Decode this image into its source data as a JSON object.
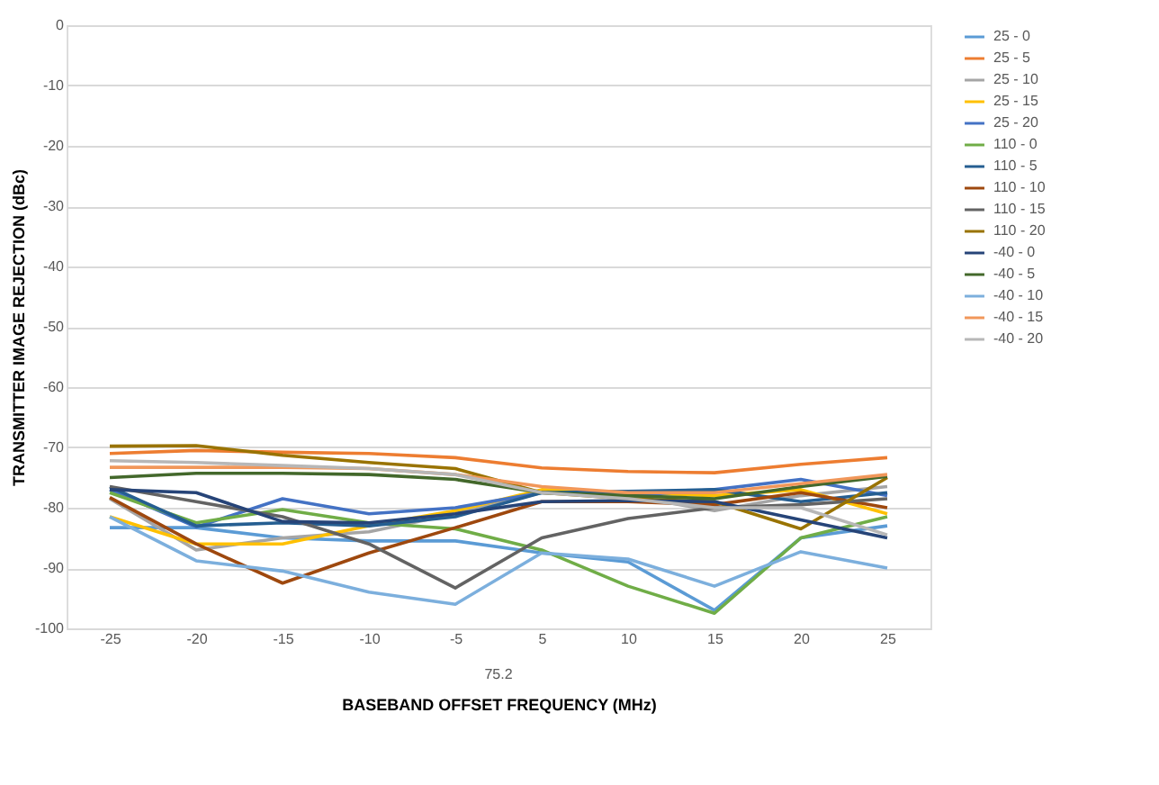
{
  "chart_data": {
    "type": "line",
    "xlabel": "BASEBAND OFFSET FREQUENCY (MHz)",
    "ylabel": "TRANSMITTER IMAGE REJECTION (dBc)",
    "categories": [
      "-25",
      "-20",
      "-15",
      "-10",
      "-5",
      "5",
      "10",
      "15",
      "20",
      "25"
    ],
    "ylim": [
      -100,
      0
    ],
    "yticks": [
      -100,
      -90,
      -80,
      -70,
      -60,
      -50,
      -40,
      -30,
      -20,
      -10,
      0
    ],
    "grid": "y",
    "legend": "right",
    "marker": "none",
    "line_style": "solid",
    "annotations": [
      "75.2"
    ],
    "series": [
      {
        "name": "25 - 0",
        "color": "#5b9bd5",
        "values": [
          -83.3,
          -83.3,
          -85,
          -85.5,
          -85.5,
          -87.5,
          -89,
          -97,
          -85,
          -83
        ]
      },
      {
        "name": "25 - 5",
        "color": "#ed7d31",
        "values": [
          -71,
          -70.5,
          -70.8,
          -71,
          -71.7,
          -73.4,
          -74,
          -74.2,
          -72.8,
          -71.7
        ]
      },
      {
        "name": "25 - 10",
        "color": "#a5a5a5",
        "values": [
          -78.5,
          -87,
          -85,
          -84,
          -81,
          -77.5,
          -78,
          -80.5,
          -78,
          -76.5
        ]
      },
      {
        "name": "25 - 15",
        "color": "#ffc000",
        "values": [
          -81.5,
          -86,
          -86,
          -83,
          -80.5,
          -77,
          -77.5,
          -78,
          -77,
          -81
        ]
      },
      {
        "name": "25 - 20",
        "color": "#4472c4",
        "values": [
          -77,
          -83.2,
          -78.5,
          -81,
          -80,
          -77.5,
          -78,
          -77,
          -75.3,
          -78
        ]
      },
      {
        "name": "110 - 0",
        "color": "#70ad47",
        "values": [
          -77.5,
          -82.5,
          -80.3,
          -82.5,
          -83.5,
          -87,
          -93,
          -97.5,
          -85,
          -81.5
        ]
      },
      {
        "name": "110 - 5",
        "color": "#255e91",
        "values": [
          -76.5,
          -83,
          -82.5,
          -83,
          -81.5,
          -77.5,
          -77.3,
          -77,
          -79,
          -77.5
        ]
      },
      {
        "name": "110 - 10",
        "color": "#9e480e",
        "values": [
          -78.3,
          -86,
          -92.5,
          -87.5,
          -83.3,
          -79,
          -79,
          -79.5,
          -77.5,
          -80
        ]
      },
      {
        "name": "110 - 15",
        "color": "#636363",
        "values": [
          -76.5,
          -79,
          -81.5,
          -86,
          -93.3,
          -85,
          -81.8,
          -80,
          -79.5,
          -78.5
        ]
      },
      {
        "name": "110 - 20",
        "color": "#997300",
        "values": [
          -69.8,
          -69.7,
          -71.3,
          -72.5,
          -73.5,
          -77.5,
          -78.5,
          -79,
          -83.5,
          -75
        ]
      },
      {
        "name": "-40 - 0",
        "color": "#264478",
        "values": [
          -77,
          -77.5,
          -82.3,
          -82.5,
          -81,
          -79,
          -78.8,
          -79,
          -82,
          -85
        ]
      },
      {
        "name": "-40 - 5",
        "color": "#43682b",
        "values": [
          -75,
          -74.3,
          -74.3,
          -74.5,
          -75.3,
          -77.5,
          -78,
          -78.5,
          -76.5,
          -74.8
        ]
      },
      {
        "name": "-40 - 10",
        "color": "#7cafdd",
        "values": [
          -81.5,
          -88.8,
          -90.5,
          -94,
          -96,
          -87.5,
          -88.5,
          -93,
          -87.3,
          -90
        ]
      },
      {
        "name": "-40 - 15",
        "color": "#f1975a",
        "values": [
          -73.3,
          -73.3,
          -73.3,
          -73.5,
          -74.5,
          -76.5,
          -77.5,
          -77.5,
          -76,
          -74.5
        ]
      },
      {
        "name": "-40 - 20",
        "color": "#b7b7b7",
        "values": [
          -72.2,
          -72.5,
          -73,
          -73.5,
          -74.5,
          -77.5,
          -78.5,
          -80,
          -80,
          -84.5
        ]
      }
    ]
  }
}
